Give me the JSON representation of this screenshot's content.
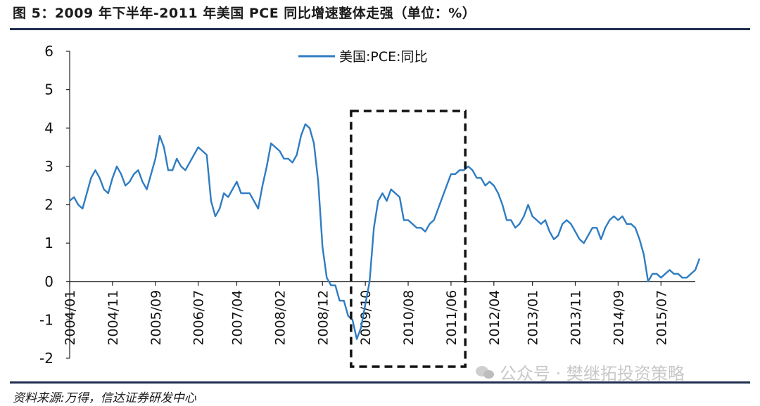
{
  "header": {
    "title": "图 5：2009 年下半年-2011 年美国 PCE 同比增速整体走强（单位：%）"
  },
  "footer": {
    "source": "资料来源:万得，信达证券研发中心",
    "watermark": "公众号 · 樊继拓投资策略"
  },
  "colors": {
    "series": "#2f7cc1",
    "rule": "#1f2d4e",
    "highlight_box": "#111111"
  },
  "chart_data": {
    "type": "line",
    "title": "",
    "xlabel": "",
    "ylabel": "",
    "ylim": [
      -2,
      6
    ],
    "yticks": [
      -2,
      -1,
      0,
      1,
      2,
      3,
      4,
      5,
      6
    ],
    "grid": false,
    "legend": "top-center",
    "x_start": "2004/01",
    "x_end": "2016/03",
    "xticks": [
      "2004/01",
      "2004/11",
      "2005/09",
      "2006/07",
      "2007/04",
      "2008/02",
      "2008/12",
      "2009/10",
      "2010/08",
      "2011/06",
      "2012/04",
      "2013/01",
      "2013/11",
      "2014/09",
      "2015/07"
    ],
    "highlight": {
      "from": "2009/07",
      "to": "2011/09"
    },
    "series": [
      {
        "name": "美国:PCE:同比",
        "values": [
          2.1,
          2.2,
          2.0,
          1.9,
          2.3,
          2.7,
          2.9,
          2.7,
          2.4,
          2.3,
          2.7,
          3.0,
          2.8,
          2.5,
          2.6,
          2.8,
          2.9,
          2.6,
          2.4,
          2.8,
          3.2,
          3.8,
          3.5,
          2.9,
          2.9,
          3.2,
          3.0,
          2.9,
          3.1,
          3.3,
          3.5,
          3.4,
          3.3,
          2.1,
          1.7,
          1.9,
          2.3,
          2.2,
          2.4,
          2.6,
          2.3,
          2.3,
          2.3,
          2.1,
          1.9,
          2.5,
          3.0,
          3.6,
          3.5,
          3.4,
          3.2,
          3.2,
          3.1,
          3.3,
          3.8,
          4.1,
          4.0,
          3.6,
          2.6,
          0.9,
          0.1,
          -0.1,
          -0.1,
          -0.5,
          -0.5,
          -0.9,
          -1.0,
          -1.5,
          -1.2,
          -0.6,
          0.0,
          1.4,
          2.1,
          2.3,
          2.1,
          2.4,
          2.3,
          2.2,
          1.6,
          1.6,
          1.5,
          1.4,
          1.4,
          1.3,
          1.5,
          1.6,
          1.9,
          2.2,
          2.5,
          2.8,
          2.8,
          2.9,
          2.9,
          3.0,
          2.9,
          2.7,
          2.7,
          2.5,
          2.6,
          2.5,
          2.3,
          2.0,
          1.6,
          1.6,
          1.4,
          1.5,
          1.7,
          2.0,
          1.7,
          1.6,
          1.5,
          1.6,
          1.3,
          1.1,
          1.2,
          1.5,
          1.6,
          1.5,
          1.3,
          1.1,
          1.0,
          1.2,
          1.4,
          1.4,
          1.1,
          1.4,
          1.6,
          1.7,
          1.6,
          1.7,
          1.5,
          1.5,
          1.4,
          1.1,
          0.7,
          0.0,
          0.2,
          0.2,
          0.1,
          0.2,
          0.3,
          0.2,
          0.2,
          0.1,
          0.1,
          0.2,
          0.3,
          0.6
        ]
      }
    ]
  }
}
